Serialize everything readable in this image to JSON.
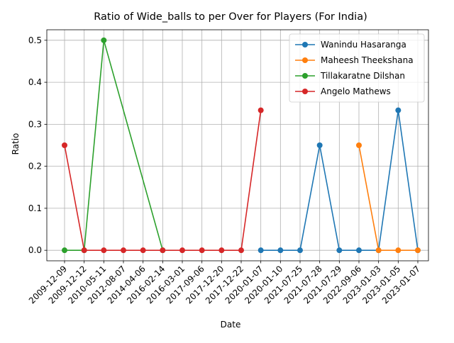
{
  "chart_data": {
    "type": "line",
    "title": "Ratio of Wide_balls to per Over for Players (For India)",
    "xlabel": "Date",
    "ylabel": "Ratio",
    "categories": [
      "2009-12-09",
      "2009-12-12",
      "2010-05-11",
      "2012-08-07",
      "2014-04-06",
      "2016-02-14",
      "2016-03-01",
      "2017-09-06",
      "2017-12-20",
      "2017-12-22",
      "2020-01-07",
      "2020-01-10",
      "2021-07-25",
      "2021-07-28",
      "2021-07-29",
      "2022-09-06",
      "2023-01-03",
      "2023-01-05",
      "2023-01-07"
    ],
    "ylim": [
      -0.025,
      0.525
    ],
    "yticks": [
      "0.0",
      "0.1",
      "0.2",
      "0.3",
      "0.4",
      "0.5"
    ],
    "grid": true,
    "legend_position": "top-right",
    "series": [
      {
        "name": "Wanindu Hasaranga",
        "color": "#1f77b4",
        "points": [
          [
            "2020-01-07",
            0.0
          ],
          [
            "2020-01-10",
            0.0
          ],
          [
            "2021-07-25",
            0.0
          ],
          [
            "2021-07-28",
            0.25
          ],
          [
            "2021-07-29",
            0.0
          ],
          [
            "2022-09-06",
            0.0
          ],
          [
            "2023-01-03",
            0.0
          ],
          [
            "2023-01-05",
            0.3333
          ],
          [
            "2023-01-07",
            0.0
          ]
        ]
      },
      {
        "name": "Maheesh Theekshana",
        "color": "#ff7f0e",
        "points": [
          [
            "2022-09-06",
            0.25
          ],
          [
            "2023-01-03",
            0.0
          ],
          [
            "2023-01-05",
            0.0
          ],
          [
            "2023-01-07",
            0.0
          ]
        ]
      },
      {
        "name": "Tillakaratne Dilshan",
        "color": "#2ca02c",
        "points": [
          [
            "2009-12-09",
            0.0
          ],
          [
            "2009-12-12",
            0.0
          ],
          [
            "2010-05-11",
            0.5
          ],
          [
            "2016-02-14",
            0.0
          ]
        ]
      },
      {
        "name": "Angelo Mathews",
        "color": "#d62728",
        "points": [
          [
            "2009-12-09",
            0.25
          ],
          [
            "2009-12-12",
            0.0
          ],
          [
            "2010-05-11",
            0.0
          ],
          [
            "2012-08-07",
            0.0
          ],
          [
            "2014-04-06",
            0.0
          ],
          [
            "2016-02-14",
            0.0
          ],
          [
            "2016-03-01",
            0.0
          ],
          [
            "2017-09-06",
            0.0
          ],
          [
            "2017-12-20",
            0.0
          ],
          [
            "2017-12-22",
            0.0
          ],
          [
            "2020-01-07",
            0.3333
          ]
        ]
      }
    ]
  }
}
